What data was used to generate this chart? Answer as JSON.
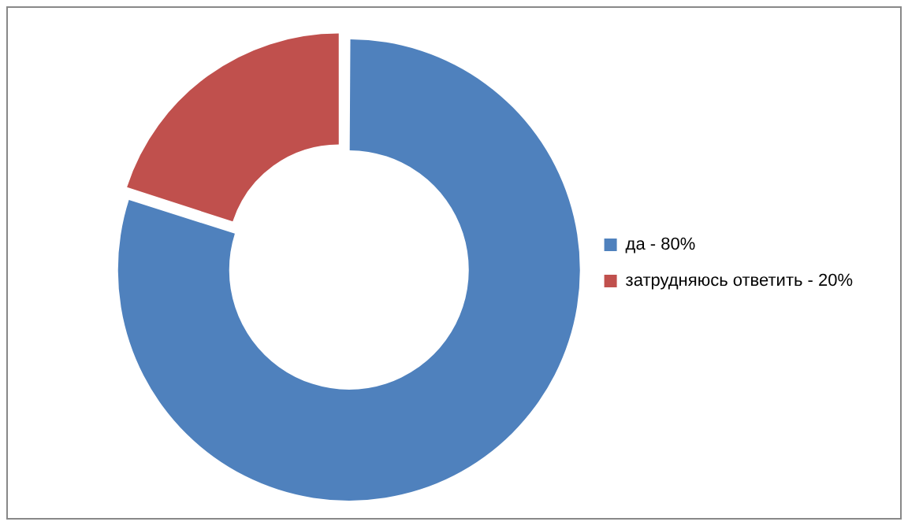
{
  "chart_data": {
    "type": "donut",
    "categories": [
      "да - 80%",
      "затрудняюсь ответить - 20%"
    ],
    "values": [
      80,
      20
    ],
    "colors": [
      "#4f81bd",
      "#c0504d"
    ],
    "legend": "right"
  }
}
